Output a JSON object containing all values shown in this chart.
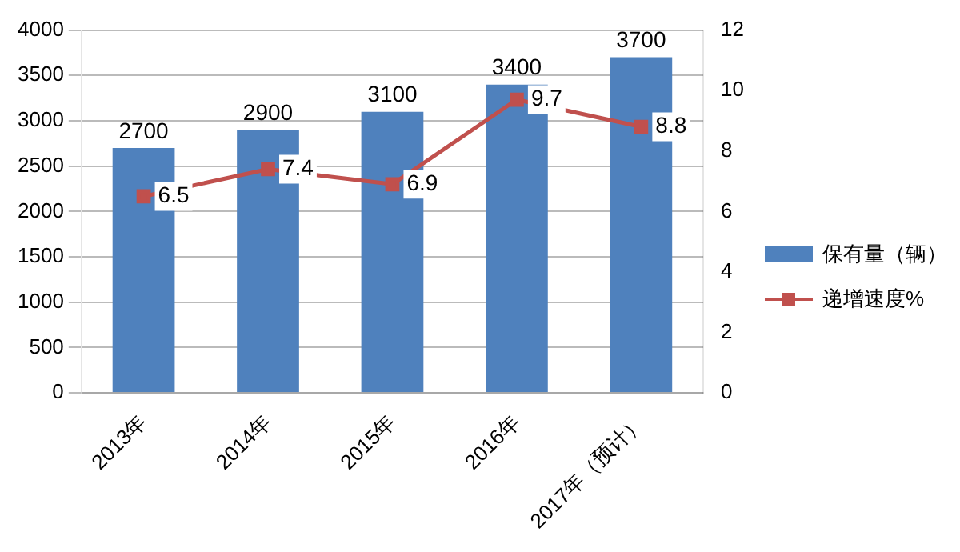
{
  "chart_data": {
    "type": "bar",
    "categories": [
      "2013年",
      "2014年",
      "2015年",
      "2016年",
      "2017年（预计）"
    ],
    "series": [
      {
        "name": "保有量（辆）",
        "color": "#4f81bd",
        "values": [
          2700,
          2900,
          3100,
          3400,
          3700
        ]
      },
      {
        "name": "递增速度%",
        "type": "line",
        "axis": "y2",
        "color": "#c0504d",
        "values": [
          6.5,
          7.4,
          6.9,
          9.7,
          8.8
        ]
      }
    ],
    "ylim": [
      0,
      4000
    ],
    "yticks": [
      0,
      500,
      1000,
      1500,
      2000,
      2500,
      3000,
      3500,
      4000
    ],
    "y2lim": [
      0,
      12
    ],
    "y2ticks": [
      0,
      2,
      4,
      6,
      8,
      10,
      12
    ],
    "grid": "y",
    "legend": "right",
    "marker": "square",
    "line_style": "solid",
    "data_labels": true
  }
}
